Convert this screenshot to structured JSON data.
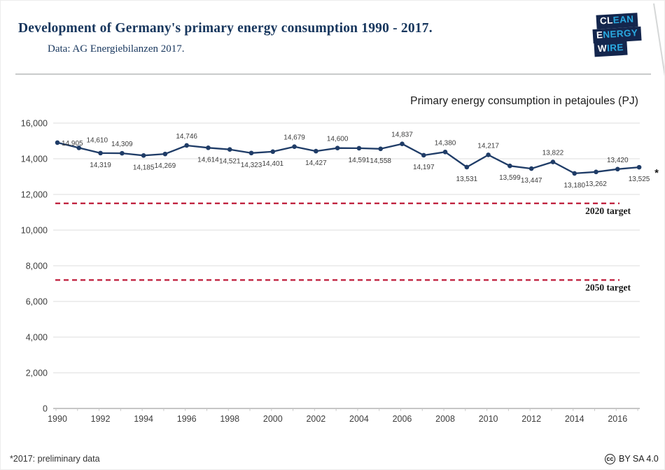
{
  "header": {
    "title": "Development of Germany's primary energy consumption 1990 - 2017.",
    "subtitle": "Data: AG Energiebilanzen 2017.",
    "logo": {
      "lines": [
        {
          "white": "CL",
          "blue": "EAN"
        },
        {
          "white": "E",
          "blue": "NERGY"
        },
        {
          "white": "W",
          "blue": "IRE"
        }
      ]
    }
  },
  "chart_data": {
    "type": "line",
    "title": "Primary energy consumption in petajoules (PJ)",
    "x": [
      1990,
      1991,
      1992,
      1993,
      1994,
      1995,
      1996,
      1997,
      1998,
      1999,
      2000,
      2001,
      2002,
      2003,
      2004,
      2005,
      2006,
      2007,
      2008,
      2009,
      2010,
      2011,
      2012,
      2013,
      2014,
      2015,
      2016,
      2017
    ],
    "values": [
      14905,
      14610,
      14319,
      14309,
      14185,
      14269,
      14746,
      14614,
      14521,
      14323,
      14401,
      14679,
      14427,
      14600,
      14591,
      14558,
      14837,
      14197,
      14380,
      13531,
      14217,
      13599,
      13447,
      13822,
      13180,
      13262,
      13420,
      13525
    ],
    "label_pos": [
      "right",
      "above-right",
      "below",
      "above",
      "below",
      "below",
      "above",
      "below",
      "below",
      "below",
      "below",
      "above",
      "below",
      "above",
      "below",
      "below",
      "above",
      "below",
      "above",
      "below",
      "above",
      "below",
      "below",
      "above",
      "below",
      "below",
      "above",
      "below"
    ],
    "last_point_marker": "*",
    "xticks": [
      1990,
      1992,
      1994,
      1996,
      1998,
      2000,
      2002,
      2004,
      2006,
      2008,
      2010,
      2012,
      2014,
      2016
    ],
    "ylim": [
      0,
      16000
    ],
    "ytick_step": 2000,
    "grid": true,
    "targets": [
      {
        "label": "2020 target",
        "value": 11500
      },
      {
        "label": "2050 target",
        "value": 7200
      }
    ],
    "colors": {
      "series": "#1f3c67",
      "target_line": "#be1a38",
      "grid": "#dcdcdc",
      "axis": "#b3b3b3",
      "tick": "#c6c6c6",
      "data_label": "#3d3d3d",
      "axis_label": "#3d3d3d",
      "target_label": "#1a1a1a"
    }
  },
  "footer": {
    "note": "*2017: preliminary data",
    "cc_glyph": "cc",
    "license": "BY SA 4.0"
  },
  "brand": {
    "navy": "#14264d",
    "light_blue": "#2aa9e0",
    "title_navy": "#17365d"
  }
}
